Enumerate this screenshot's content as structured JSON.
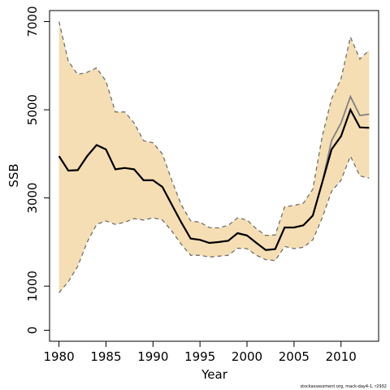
{
  "chart_data": {
    "type": "area",
    "xlabel": "Year",
    "ylabel": "SSB",
    "xlim": [
      1979,
      2014
    ],
    "ylim": [
      -250,
      7250
    ],
    "x_ticks": [
      1980,
      1985,
      1990,
      1995,
      2000,
      2005,
      2010
    ],
    "y_ticks": [
      0,
      1000,
      3000,
      5000,
      7000
    ],
    "grid": false,
    "legend": "none",
    "colors": {
      "band": "#f5deb3",
      "estimate": "#000000",
      "secondary": "#808080",
      "bounds": "#707070"
    },
    "series": [
      {
        "x": [
          1980,
          1981,
          1982,
          1983,
          1984,
          1985,
          1986,
          1987,
          1988,
          1989,
          1990,
          1991,
          1992,
          1993,
          1994,
          1995,
          1996,
          1997,
          1998,
          1999,
          2000,
          2001,
          2002,
          2003,
          2004,
          2005,
          2006,
          2007,
          2008,
          2009,
          2010,
          2011,
          2012,
          2013
        ],
        "estimate": [
          3950,
          3620,
          3630,
          3950,
          4200,
          4100,
          3650,
          3680,
          3650,
          3400,
          3400,
          3250,
          2850,
          2450,
          2080,
          2050,
          1980,
          2000,
          2030,
          2200,
          2150,
          1980,
          1820,
          1840,
          2330,
          2330,
          2380,
          2600,
          3350,
          4100,
          4400,
          5000,
          4600,
          4590
        ],
        "lower": [
          850,
          1100,
          1450,
          2000,
          2400,
          2480,
          2400,
          2450,
          2530,
          2500,
          2550,
          2500,
          2250,
          1950,
          1700,
          1700,
          1660,
          1680,
          1700,
          1860,
          1850,
          1700,
          1600,
          1580,
          1900,
          1850,
          1880,
          2050,
          2550,
          3150,
          3400,
          3950,
          3500,
          3450
        ],
        "upper": [
          7000,
          6100,
          5800,
          5850,
          5950,
          5650,
          4950,
          4950,
          4700,
          4300,
          4250,
          4000,
          3400,
          2850,
          2480,
          2450,
          2330,
          2320,
          2380,
          2550,
          2500,
          2300,
          2150,
          2160,
          2800,
          2830,
          2880,
          3200,
          4400,
          5250,
          5700,
          6650,
          6150,
          6350
        ],
        "secondary": [
          3950,
          3620,
          3630,
          3950,
          4200,
          4100,
          3650,
          3680,
          3650,
          3400,
          3400,
          3250,
          2850,
          2450,
          2080,
          2050,
          1980,
          2000,
          2030,
          2200,
          2150,
          1980,
          1820,
          1840,
          2330,
          2330,
          2380,
          2600,
          3350,
          4300,
          4700,
          5300,
          4870,
          4900
        ]
      }
    ]
  },
  "credit": "stockassessment.org, mack-day4-1, r2932"
}
